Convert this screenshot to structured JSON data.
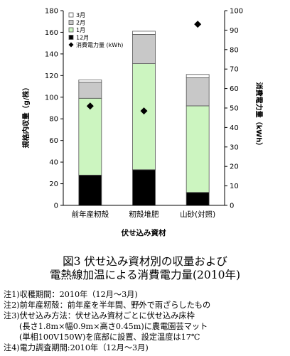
{
  "chart_data": {
    "type": "bar",
    "stacked": true,
    "categories": [
      "前年産籾殻",
      "籾殻堆肥",
      "山砂(対照)"
    ],
    "xlabel": "伏せ込み資材",
    "ylabel": "規格内収量（g/株）",
    "y2label": "消費電力量（kWh）",
    "ylim": [
      0,
      180
    ],
    "yticks": [
      0,
      20,
      40,
      60,
      80,
      100,
      120,
      140,
      160,
      180
    ],
    "y2lim": [
      0,
      100
    ],
    "y2ticks": [
      0,
      10,
      20,
      30,
      40,
      50,
      60,
      70,
      80,
      90,
      100
    ],
    "series": [
      {
        "name": "12月",
        "color": "#000000",
        "values": [
          28,
          33,
          12
        ]
      },
      {
        "name": "1月",
        "color": "#ccf5c0",
        "values": [
          71,
          98,
          80
        ]
      },
      {
        "name": "2月",
        "color": "#c8c8c8",
        "values": [
          15,
          27,
          26
        ]
      },
      {
        "name": "3月",
        "color": "#ffffff",
        "values": [
          2,
          3,
          3
        ]
      }
    ],
    "power_series": {
      "name": "消費電力量 (kWh)",
      "values": [
        51,
        48.5,
        93
      ]
    },
    "legend": [
      "3月",
      "2月",
      "1月",
      "12月",
      "消費電力量 (kWh)"
    ],
    "legend_position": "top-left"
  },
  "caption": {
    "line1": "図3 伏せ込み資材別の収量および",
    "line2": "電熱線加温による消費電力量(2010年)"
  },
  "notes": [
    "注1)収穫期間：2010年（12月～3月)",
    "注2)前年産籾殻：前年産を半年間、野外で雨ざらしたもの",
    "注3)伏せ込み方法：伏せ込み資材ごとに伏せ込み床枠",
    "(長さ1.8m×幅0.9m×高さ0.45m)に農電園芸マット",
    "(単相100V150W)を底部に設置、設定温度は17℃",
    "注4)電力調査期間:2010年（12月～3月)"
  ]
}
